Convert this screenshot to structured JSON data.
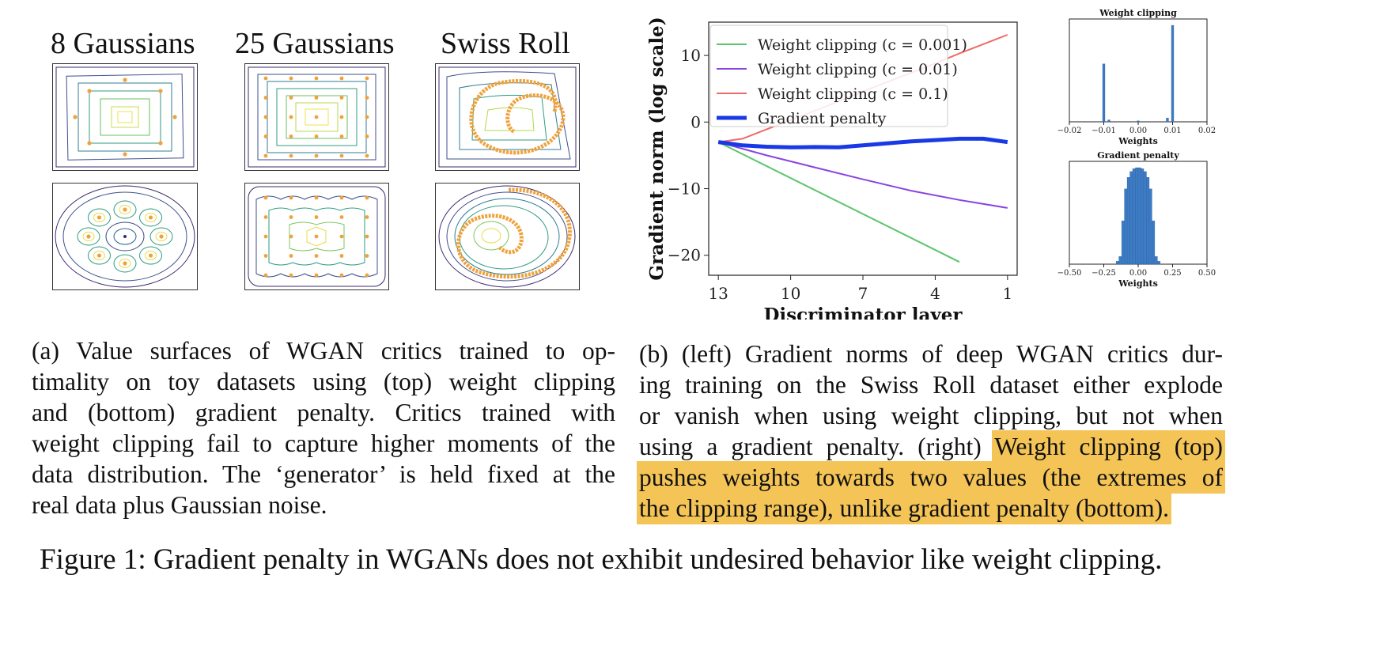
{
  "left_panel": {
    "titles": [
      "8 Gaussians",
      "25 Gaussians",
      "Swiss Roll"
    ],
    "caption_lines": [
      "(a)  Value surfaces of WGAN critics trained to op-",
      "timality on toy datasets using (top) weight clipping",
      "and (bottom) gradient penalty.  Critics trained with",
      "weight clipping fail to capture higher moments of the",
      "data distribution. The ‘generator’ is held fixed at the",
      "real data plus Gaussian noise."
    ],
    "colors": {
      "contour_outer": "#3b2a6e",
      "contour_mid": "#2e8f8a",
      "contour_inner": "#b7d84a",
      "contour_core": "#f0e04a",
      "points": "#f0a23a"
    }
  },
  "main_chart": {
    "chart_data": {
      "type": "line",
      "xlabel": "Discriminator layer",
      "ylabel": "Gradient norm (log scale)",
      "x_ticks": [
        13,
        10,
        7,
        4,
        1
      ],
      "x_reversed": true,
      "xlim": [
        13.4,
        0.6
      ],
      "y_ticks": [
        10,
        0,
        -10,
        -20
      ],
      "ylim": [
        -23,
        15
      ],
      "legend_position": "top-left",
      "series": [
        {
          "name": "Weight clipping (c = 0.001)",
          "color": "#5cc46b",
          "width": 2,
          "x": [
            13,
            3
          ],
          "y": [
            -3,
            -21
          ]
        },
        {
          "name": "Weight clipping (c = 0.01)",
          "color": "#8a44e0",
          "width": 2,
          "x": [
            13,
            11,
            9,
            7,
            5,
            3,
            1
          ],
          "y": [
            -3,
            -5,
            -6.8,
            -8.6,
            -10.3,
            -11.7,
            -12.9
          ]
        },
        {
          "name": "Weight clipping (c = 0.1)",
          "color": "#ee6b6b",
          "width": 2,
          "x": [
            13,
            12,
            11,
            10,
            9,
            8,
            7,
            6,
            5,
            4,
            3,
            2,
            1
          ],
          "y": [
            -3,
            -2.5,
            -1.1,
            0.3,
            1.7,
            3.1,
            4.6,
            6.0,
            7.4,
            8.8,
            10.3,
            11.7,
            13.1
          ]
        },
        {
          "name": "Gradient penalty",
          "color": "#1a39e6",
          "width": 5,
          "x": [
            13,
            12,
            11,
            10,
            9,
            8,
            7,
            6,
            5,
            4,
            3,
            2,
            1
          ],
          "y": [
            -3,
            -3.5,
            -3.7,
            -3.8,
            -3.75,
            -3.8,
            -3.5,
            -3.2,
            -2.9,
            -2.7,
            -2.5,
            -2.5,
            -3
          ]
        }
      ]
    }
  },
  "hist_top": {
    "chart_data": {
      "type": "bar",
      "title": "Weight clipping",
      "xlabel": "Weights",
      "x_ticks": [
        "−0.02",
        "−0.01",
        "0.00",
        "0.01",
        "0.02"
      ],
      "xlim": [
        -0.02,
        0.02
      ],
      "bars": [
        {
          "x": -0.01,
          "value": 0.6
        },
        {
          "x": 0.01,
          "value": 1.0
        },
        {
          "x": 0.0085,
          "value": 0.04
        },
        {
          "x": -0.0085,
          "value": 0.02
        },
        {
          "x": 0.0,
          "value": 0.01
        }
      ],
      "color": "#3d7bc4"
    }
  },
  "hist_bottom": {
    "chart_data": {
      "type": "bar",
      "title": "Gradient penalty",
      "xlabel": "Weights",
      "x_ticks": [
        "−0.50",
        "−0.25",
        "0.00",
        "0.25",
        "0.50"
      ],
      "xlim": [
        -0.5,
        0.5
      ],
      "bars": [
        {
          "x": -0.15,
          "value": 0.03
        },
        {
          "x": -0.13,
          "value": 0.08
        },
        {
          "x": -0.11,
          "value": 0.45
        },
        {
          "x": -0.09,
          "value": 0.78
        },
        {
          "x": -0.07,
          "value": 0.9
        },
        {
          "x": -0.05,
          "value": 0.96
        },
        {
          "x": -0.03,
          "value": 0.99
        },
        {
          "x": -0.01,
          "value": 1.0
        },
        {
          "x": 0.01,
          "value": 1.0
        },
        {
          "x": 0.03,
          "value": 0.99
        },
        {
          "x": 0.05,
          "value": 0.96
        },
        {
          "x": 0.07,
          "value": 0.9
        },
        {
          "x": 0.09,
          "value": 0.78
        },
        {
          "x": 0.11,
          "value": 0.45
        },
        {
          "x": 0.13,
          "value": 0.08
        },
        {
          "x": 0.15,
          "value": 0.03
        }
      ],
      "color": "#3d7bc4"
    }
  },
  "right_caption": {
    "lines": [
      {
        "text": "(b)  (left) Gradient norms of deep WGAN critics dur-"
      },
      {
        "text": "ing training on the Swiss Roll dataset either explode"
      },
      {
        "text": "or vanish when using weight clipping, but not when"
      },
      {
        "text": "using a gradient penalty. (right) ",
        "hl": "Weight clipping (top)"
      },
      {
        "text": "",
        "hl": "pushes weights towards two values (the extremes of"
      },
      {
        "text": "",
        "hl": "the clipping range), unlike gradient penalty (bottom)."
      }
    ],
    "highlight_color": "#f4c456"
  },
  "figure_caption": "Figure 1: Gradient penalty in WGANs does not exhibit undesired behavior like weight clipping."
}
